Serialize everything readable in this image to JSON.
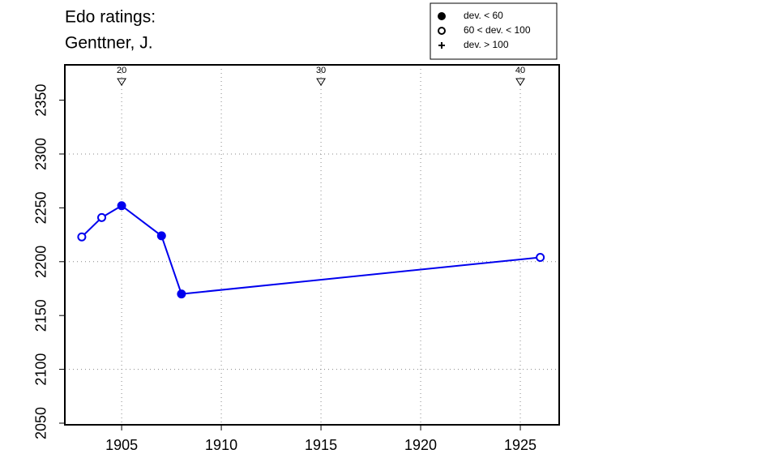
{
  "chart_data": {
    "type": "line",
    "title_lines": [
      "Edo ratings:",
      "Genttner, J."
    ],
    "x": [
      1903,
      1904,
      1905,
      1907,
      1908,
      1926
    ],
    "values": [
      2223,
      2241,
      2252,
      2224,
      2170,
      2204
    ],
    "color": "#0000ee",
    "point_class": [
      1,
      1,
      0,
      0,
      0,
      1
    ],
    "legend": [
      "dev. < 60",
      "60 < dev. < 100",
      "dev. > 100"
    ],
    "legend_markers": [
      "filled",
      "open",
      "plus"
    ],
    "legend_position": "top-right",
    "top_markers": [
      {
        "x": 1905,
        "label": "20"
      },
      {
        "x": 1915,
        "label": "30"
      },
      {
        "x": 1925,
        "label": "40"
      }
    ],
    "xlim": [
      1902.15,
      1926.95
    ],
    "xticks": [
      1905,
      1910,
      1915,
      1920,
      1925
    ],
    "ylim": [
      2048.5,
      2382.8
    ],
    "yticks": [
      2050,
      2100,
      2150,
      2200,
      2250,
      2300,
      2350
    ],
    "xgrid": [
      1905,
      1910,
      1915,
      1920,
      1925
    ],
    "ygrid": [
      2100,
      2200,
      2300
    ]
  }
}
